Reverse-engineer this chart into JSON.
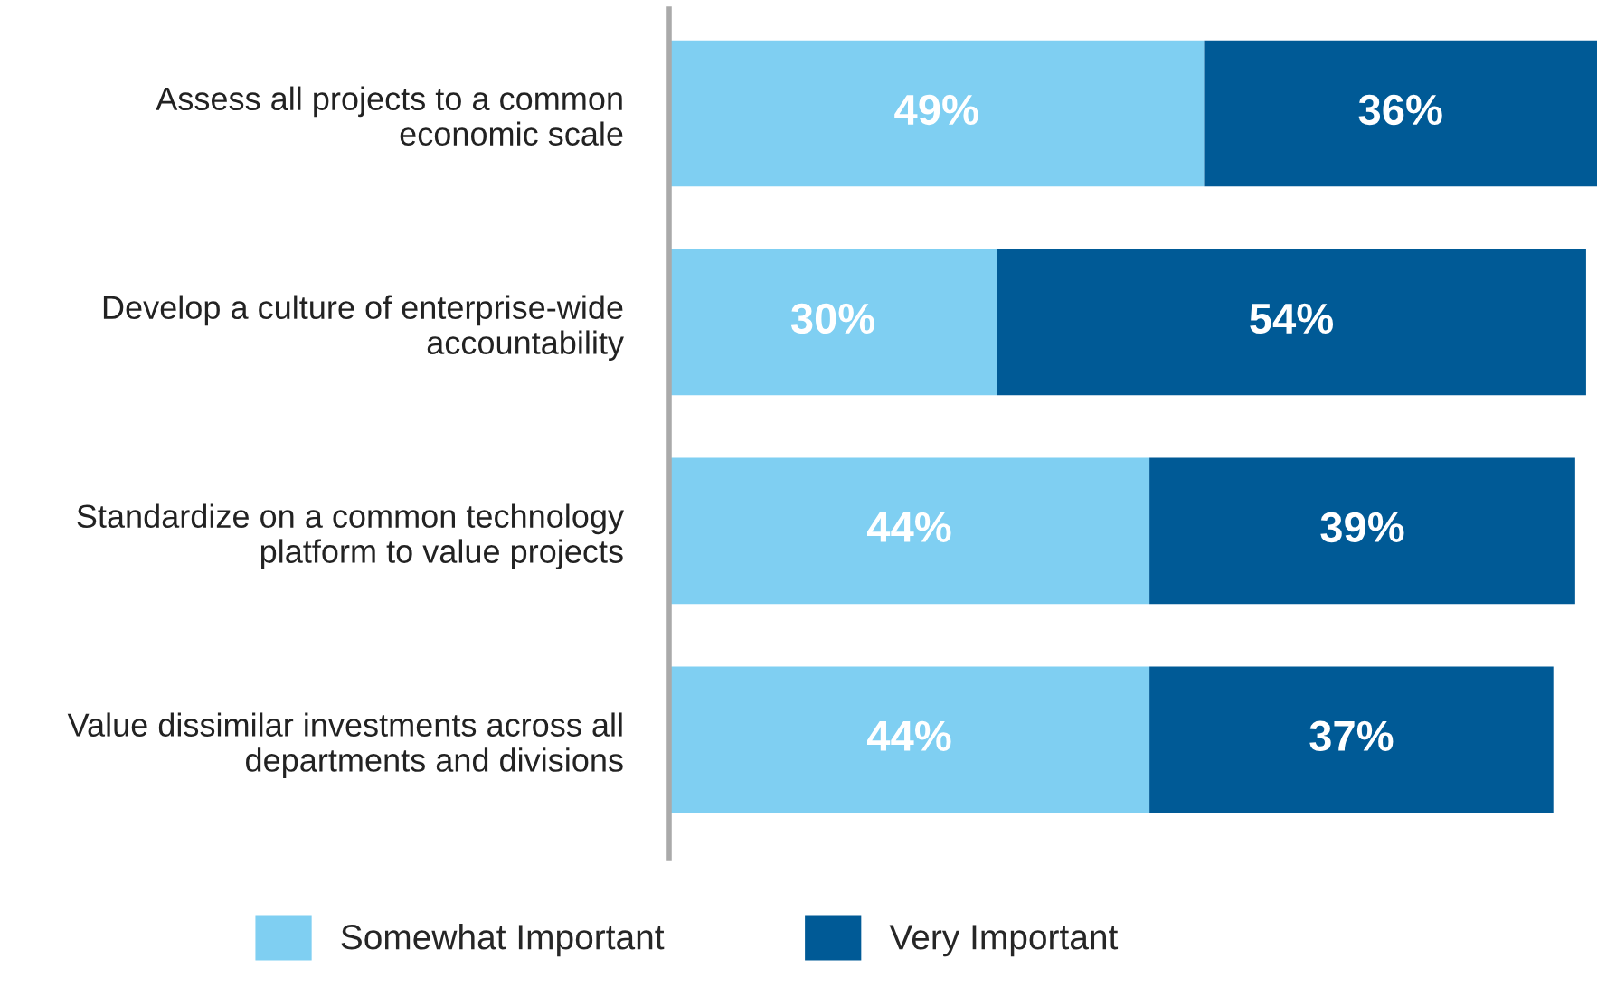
{
  "chart_data": {
    "type": "bar",
    "orientation": "horizontal",
    "stacked": true,
    "categories": [
      "Assess all projects to a common\neconomic scale",
      "Develop a culture of enterprise-wide\naccountability",
      "Standardize on a common technology\nplatform to value projects",
      "Value dissimilar investments across all\ndepartments and divisions"
    ],
    "series": [
      {
        "name": "Somewhat Important",
        "color": "#7fcff2",
        "values": [
          49,
          30,
          44,
          44
        ],
        "value_labels": [
          "49%",
          "30%",
          "44%",
          "44%"
        ]
      },
      {
        "name": "Very Important",
        "color": "#005a96",
        "values": [
          36,
          54,
          39,
          37
        ],
        "value_labels": [
          "36%",
          "54%",
          "39%",
          "37%"
        ]
      }
    ],
    "tick_labels": "y",
    "legend": "bottom",
    "grid": false
  }
}
